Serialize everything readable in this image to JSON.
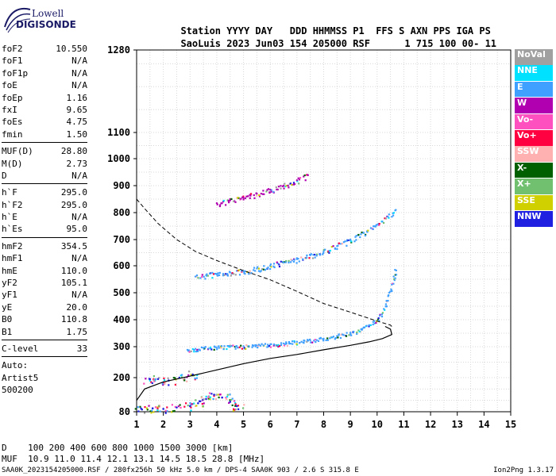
{
  "logo": {
    "line1": "Lowell",
    "line2": "DIGISONDE"
  },
  "header": {
    "labels": [
      "Station",
      "YYYY",
      "DAY",
      "DDD",
      "HHMMSS",
      "P1",
      "FFS",
      "S",
      "AXN",
      "PPS",
      "IGA",
      "PS"
    ],
    "values": [
      "SaoLuis",
      "2023",
      "Jun03",
      "154",
      "205000",
      "RSF",
      "",
      "1",
      "715",
      "100",
      "00-",
      "11"
    ]
  },
  "params": [
    {
      "group": [
        {
          "name": "foF2",
          "value": "10.550"
        },
        {
          "name": "foF1",
          "value": "N/A"
        },
        {
          "name": "foF1p",
          "value": "N/A"
        },
        {
          "name": "foE",
          "value": "N/A"
        },
        {
          "name": "foEp",
          "value": "1.16"
        },
        {
          "name": "fxI",
          "value": "9.65"
        },
        {
          "name": "foEs",
          "value": "4.75"
        },
        {
          "name": "fmin",
          "value": "1.50"
        }
      ]
    },
    {
      "group": [
        {
          "name": "MUF(D)",
          "value": "28.80"
        },
        {
          "name": "M(D)",
          "value": "2.73"
        },
        {
          "name": "D",
          "value": "N/A"
        }
      ]
    },
    {
      "group": [
        {
          "name": "h`F",
          "value": "295.0"
        },
        {
          "name": "h`F2",
          "value": "295.0"
        },
        {
          "name": "h`E",
          "value": "N/A"
        },
        {
          "name": "h`Es",
          "value": "95.0"
        }
      ]
    },
    {
      "group": [
        {
          "name": "hmF2",
          "value": "354.5"
        },
        {
          "name": "hmF1",
          "value": "N/A"
        },
        {
          "name": "hmE",
          "value": "110.0"
        },
        {
          "name": "yF2",
          "value": "105.1"
        },
        {
          "name": "yF1",
          "value": "N/A"
        },
        {
          "name": "yE",
          "value": "20.0"
        },
        {
          "name": "B0",
          "value": "110.8"
        },
        {
          "name": "B1",
          "value": "1.75"
        }
      ]
    },
    {
      "group": [
        {
          "name": "C-level",
          "value": "33"
        }
      ]
    }
  ],
  "auto": {
    "title": "Auto:",
    "software": "Artist5",
    "version": "500200"
  },
  "legend": [
    {
      "label": "NoVal",
      "color": "#a0a0a0"
    },
    {
      "label": "NNE",
      "color": "#00e0ff"
    },
    {
      "label": "E",
      "color": "#40a0ff"
    },
    {
      "label": "W",
      "color": "#b000b0"
    },
    {
      "label": "Vo-",
      "color": "#ff50c0"
    },
    {
      "label": "Vo+",
      "color": "#ff0040"
    },
    {
      "label": "SSW",
      "color": "#ffb0b0"
    },
    {
      "label": "X-",
      "color": "#006000"
    },
    {
      "label": "X+",
      "color": "#70c070"
    },
    {
      "label": "SSE",
      "color": "#d0d000"
    },
    {
      "label": "NNW",
      "color": "#2020e0"
    }
  ],
  "muf_table": {
    "d_label": "D",
    "d_values": [
      "100",
      "200",
      "400",
      "600",
      "800",
      "1000",
      "1500",
      "3000"
    ],
    "d_unit": "[km]",
    "muf_label": "MUF",
    "muf_values": [
      "10.9",
      "11.0",
      "11.4",
      "12.1",
      "13.1",
      "14.5",
      "18.5",
      "28.8"
    ],
    "muf_unit": "[MHz]"
  },
  "file_info": "SAA0K_2023154205000.RSF / 280fx256h 50 kHz 5.0 km / DPS-4 SAA0K 903 / 2.6 S 315.8 E",
  "version": "Ion2Png 1.3.17",
  "chart_data": {
    "type": "scatter",
    "xlim": [
      1,
      15
    ],
    "xticks": [
      1,
      2,
      3,
      4,
      5,
      6,
      7,
      8,
      9,
      10,
      11,
      12,
      13,
      14,
      15
    ],
    "ylim": [
      80,
      1280
    ],
    "yticks": [
      80,
      200,
      300,
      400,
      500,
      600,
      700,
      800,
      900,
      1000,
      1100,
      1280
    ],
    "grid": true,
    "series": [
      {
        "role": "F2 O-trace",
        "color": "#40a0ff",
        "points": [
          [
            2.9,
            290
          ],
          [
            3.2,
            293
          ],
          [
            3.5,
            296
          ],
          [
            4,
            298
          ],
          [
            4.5,
            300
          ],
          [
            5,
            302
          ],
          [
            5.5,
            305
          ],
          [
            6,
            308
          ],
          [
            6.5,
            312
          ],
          [
            7,
            318
          ],
          [
            7.5,
            324
          ],
          [
            8,
            330
          ],
          [
            8.5,
            340
          ],
          [
            9,
            352
          ],
          [
            9.4,
            365
          ],
          [
            9.7,
            380
          ],
          [
            9.9,
            395
          ],
          [
            10.1,
            415
          ],
          [
            10.25,
            440
          ],
          [
            10.35,
            470
          ],
          [
            10.45,
            500
          ],
          [
            10.55,
            530
          ],
          [
            10.62,
            560
          ],
          [
            10.67,
            585
          ]
        ]
      },
      {
        "role": "2F2 O-trace",
        "color": "#40a0ff",
        "points": [
          [
            3.2,
            560
          ],
          [
            3.6,
            565
          ],
          [
            4,
            570
          ],
          [
            4.5,
            575
          ],
          [
            5,
            580
          ],
          [
            5.5,
            590
          ],
          [
            6,
            600
          ],
          [
            6.5,
            612
          ],
          [
            7,
            625
          ],
          [
            7.5,
            640
          ],
          [
            8,
            655
          ],
          [
            8.5,
            675
          ],
          [
            9,
            700
          ],
          [
            9.5,
            725
          ],
          [
            10,
            755
          ],
          [
            10.4,
            785
          ],
          [
            10.7,
            810
          ]
        ]
      },
      {
        "role": "3F2 O-trace",
        "color": "#b000b0",
        "points": [
          [
            4,
            835
          ],
          [
            4.5,
            845
          ],
          [
            5,
            855
          ],
          [
            5.5,
            870
          ],
          [
            6,
            885
          ],
          [
            6.5,
            900
          ],
          [
            7,
            920
          ],
          [
            7.4,
            940
          ]
        ]
      },
      {
        "role": "Es / low echoes",
        "color": "#2020e0",
        "points": [
          [
            1.2,
            88
          ],
          [
            1.6,
            92
          ],
          [
            2,
            90
          ],
          [
            2.5,
            95
          ],
          [
            3,
            100
          ],
          [
            3.3,
            110
          ],
          [
            3.6,
            125
          ],
          [
            3.9,
            140
          ],
          [
            4.2,
            130
          ],
          [
            4.5,
            115
          ],
          [
            4.75,
            100
          ],
          [
            1.5,
            195
          ],
          [
            1.8,
            195
          ],
          [
            2.2,
            190
          ],
          [
            2.6,
            200
          ],
          [
            3.1,
            210
          ]
        ]
      }
    ],
    "profile": {
      "role": "electron density profile",
      "points": [
        [
          1,
          120
        ],
        [
          1.3,
          160
        ],
        [
          2,
          185
        ],
        [
          3,
          205
        ],
        [
          4,
          225
        ],
        [
          5,
          245
        ],
        [
          6,
          262
        ],
        [
          7,
          275
        ],
        [
          8,
          290
        ],
        [
          9,
          305
        ],
        [
          9.7,
          318
        ],
        [
          10.2,
          330
        ],
        [
          10.55,
          345
        ],
        [
          10.5,
          365
        ],
        [
          10.3,
          375
        ]
      ]
    },
    "muf_curve": {
      "role": "MUF transmission curve",
      "points": [
        [
          1,
          850
        ],
        [
          1.3,
          815
        ],
        [
          1.8,
          760
        ],
        [
          2.5,
          700
        ],
        [
          3.2,
          655
        ],
        [
          4,
          620
        ],
        [
          5,
          582
        ],
        [
          6,
          548
        ],
        [
          7,
          505
        ],
        [
          8,
          460
        ],
        [
          9,
          428
        ],
        [
          10,
          395
        ],
        [
          10.5,
          380
        ],
        [
          10.6,
          370
        ]
      ]
    }
  }
}
